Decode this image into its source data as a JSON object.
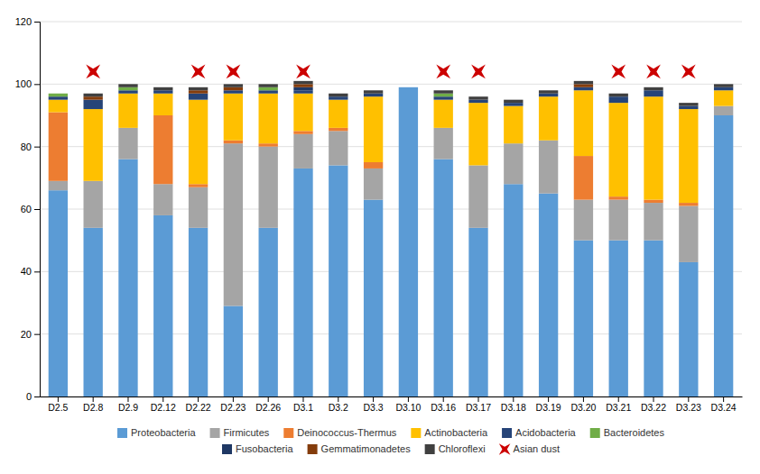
{
  "chart_data": {
    "type": "bar",
    "stacked": true,
    "categories": [
      "D2.5",
      "D2.8",
      "D2.9",
      "D2.12",
      "D2.22",
      "D2.23",
      "D2.26",
      "D3.1",
      "D3.2",
      "D3.3",
      "D3.10",
      "D3.16",
      "D3.17",
      "D3.18",
      "D3.19",
      "D3.20",
      "D3.21",
      "D3.22",
      "D3.23",
      "D3.24"
    ],
    "series": [
      {
        "name": "Proteobacteria",
        "color": "#5B9BD5",
        "values": [
          66,
          54,
          76,
          58,
          54,
          29,
          54,
          73,
          74,
          63,
          99,
          76,
          54,
          68,
          65,
          50,
          50,
          50,
          43,
          90
        ]
      },
      {
        "name": "Firmicutes",
        "color": "#A5A5A5",
        "values": [
          3,
          15,
          10,
          10,
          13,
          52,
          26,
          11,
          11,
          10,
          0,
          10,
          20,
          13,
          17,
          13,
          13,
          12,
          18,
          3
        ]
      },
      {
        "name": "Deinococcus-Thermus",
        "color": "#ED7D31",
        "values": [
          22,
          0,
          0,
          22,
          1,
          1,
          1,
          1,
          1,
          2,
          0,
          0,
          0,
          0,
          0,
          14,
          1,
          1,
          1,
          0
        ]
      },
      {
        "name": "Actinobacteria",
        "color": "#FFC000",
        "values": [
          4,
          23,
          11,
          7,
          27,
          15,
          16,
          12,
          9,
          21,
          0,
          9,
          20,
          12,
          14,
          21,
          30,
          33,
          30,
          5
        ]
      },
      {
        "name": "Acidobacteria",
        "color": "#264478",
        "values": [
          1,
          3,
          1,
          1,
          2,
          1,
          1,
          1,
          1,
          1,
          0,
          1,
          1,
          1,
          1,
          1,
          2,
          2,
          1,
          1
        ]
      },
      {
        "name": "Bacteroidetes",
        "color": "#70AD47",
        "values": [
          1,
          0,
          1,
          0,
          0,
          0,
          1,
          0,
          0,
          0,
          0,
          1,
          0,
          0,
          0,
          0,
          0,
          0,
          0,
          0
        ]
      },
      {
        "name": "Fusobacteria",
        "color": "#1F3864",
        "values": [
          0,
          0,
          0,
          0,
          0,
          0,
          0,
          1,
          0,
          0,
          0,
          0,
          0,
          0,
          0,
          0,
          0,
          0,
          0,
          0
        ]
      },
      {
        "name": "Gemmatimonadetes",
        "color": "#843C0C",
        "values": [
          0,
          1,
          0,
          0,
          1,
          1,
          0,
          1,
          0,
          0,
          0,
          0,
          0,
          0,
          0,
          1,
          0,
          0,
          0,
          0
        ]
      },
      {
        "name": "Chloroflexi",
        "color": "#404040",
        "values": [
          0,
          1,
          1,
          1,
          1,
          1,
          1,
          1,
          1,
          1,
          0,
          1,
          1,
          1,
          1,
          1,
          1,
          1,
          1,
          1
        ]
      },
      {
        "name": "Asian dust",
        "type": "scatter",
        "marker": "star",
        "color": "#CC0000",
        "values": [
          null,
          104,
          null,
          null,
          104,
          104,
          null,
          104,
          null,
          null,
          null,
          104,
          104,
          null,
          null,
          null,
          104,
          104,
          104,
          null
        ]
      }
    ],
    "ylim": [
      0,
      120
    ],
    "yticks": [
      0,
      20,
      40,
      60,
      80,
      100,
      120
    ],
    "grid": true,
    "legend": "bottom"
  }
}
